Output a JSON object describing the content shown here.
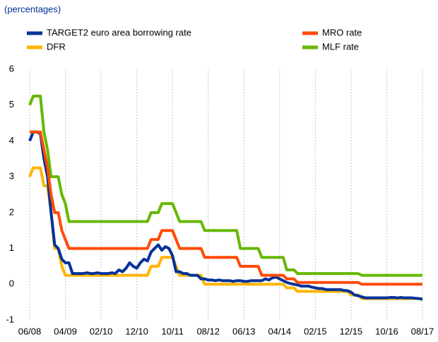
{
  "chart_data": {
    "type": "line",
    "subtitle": "(percentages)",
    "categories": [
      "06/08",
      null,
      null,
      null,
      null,
      null,
      null,
      null,
      null,
      null,
      "04/09",
      null,
      null,
      null,
      null,
      null,
      null,
      null,
      null,
      null,
      "02/10",
      null,
      null,
      null,
      null,
      null,
      null,
      null,
      null,
      null,
      "12/10",
      null,
      null,
      null,
      null,
      null,
      null,
      null,
      null,
      null,
      "10/11",
      null,
      null,
      null,
      null,
      null,
      null,
      null,
      null,
      null,
      "08/12",
      null,
      null,
      null,
      null,
      null,
      null,
      null,
      null,
      null,
      "06/13",
      null,
      null,
      null,
      null,
      null,
      null,
      null,
      null,
      null,
      "04/14",
      null,
      null,
      null,
      null,
      null,
      null,
      null,
      null,
      null,
      "02/15",
      null,
      null,
      null,
      null,
      null,
      null,
      null,
      null,
      null,
      "12/15",
      null,
      null,
      null,
      null,
      null,
      null,
      null,
      null,
      null,
      "10/16",
      null,
      null,
      null,
      null,
      null,
      null,
      null,
      null,
      null,
      "08/17"
    ],
    "series": [
      {
        "name": "TARGET2 euro area borrowing rate",
        "color": "#003299",
        "values": [
          4.0,
          4.25,
          4.25,
          4.2,
          3.5,
          3.0,
          2.0,
          1.1,
          1.0,
          0.7,
          0.6,
          0.6,
          0.3,
          0.3,
          0.3,
          0.3,
          0.32,
          0.3,
          0.3,
          0.32,
          0.3,
          0.3,
          0.3,
          0.32,
          0.3,
          0.4,
          0.35,
          0.45,
          0.6,
          0.5,
          0.45,
          0.6,
          0.7,
          0.65,
          0.9,
          1.0,
          1.1,
          0.95,
          1.05,
          1.0,
          0.8,
          0.35,
          0.35,
          0.3,
          0.3,
          0.25,
          0.25,
          0.25,
          0.15,
          0.15,
          0.12,
          0.12,
          0.1,
          0.12,
          0.1,
          0.1,
          0.1,
          0.08,
          0.1,
          0.1,
          0.08,
          0.08,
          0.1,
          0.1,
          0.1,
          0.1,
          0.15,
          0.12,
          0.18,
          0.2,
          0.15,
          0.1,
          0.05,
          0.02,
          0.0,
          -0.02,
          -0.05,
          -0.05,
          -0.05,
          -0.08,
          -0.1,
          -0.12,
          -0.12,
          -0.15,
          -0.15,
          -0.15,
          -0.15,
          -0.15,
          -0.17,
          -0.18,
          -0.22,
          -0.3,
          -0.32,
          -0.35,
          -0.38,
          -0.38,
          -0.38,
          -0.38,
          -0.38,
          -0.38,
          -0.38,
          -0.37,
          -0.37,
          -0.38,
          -0.37,
          -0.38,
          -0.38,
          -0.38,
          -0.39,
          -0.4,
          -0.42
        ]
      },
      {
        "name": "MRO rate",
        "color": "#ff4b00",
        "values": [
          4.25,
          4.25,
          4.25,
          4.25,
          3.75,
          3.25,
          2.5,
          2.0,
          2.0,
          1.5,
          1.25,
          1.0,
          1.0,
          1.0,
          1.0,
          1.0,
          1.0,
          1.0,
          1.0,
          1.0,
          1.0,
          1.0,
          1.0,
          1.0,
          1.0,
          1.0,
          1.0,
          1.0,
          1.0,
          1.0,
          1.0,
          1.0,
          1.0,
          1.0,
          1.25,
          1.25,
          1.25,
          1.5,
          1.5,
          1.5,
          1.5,
          1.25,
          1.0,
          1.0,
          1.0,
          1.0,
          1.0,
          1.0,
          1.0,
          0.75,
          0.75,
          0.75,
          0.75,
          0.75,
          0.75,
          0.75,
          0.75,
          0.75,
          0.75,
          0.5,
          0.5,
          0.5,
          0.5,
          0.5,
          0.5,
          0.25,
          0.25,
          0.25,
          0.25,
          0.25,
          0.25,
          0.25,
          0.15,
          0.15,
          0.15,
          0.05,
          0.05,
          0.05,
          0.05,
          0.05,
          0.05,
          0.05,
          0.05,
          0.05,
          0.05,
          0.05,
          0.05,
          0.05,
          0.05,
          0.05,
          0.05,
          0.05,
          0.05,
          0,
          0,
          0,
          0,
          0,
          0,
          0,
          0,
          0,
          0,
          0,
          0,
          0,
          0,
          0,
          0,
          0,
          0
        ]
      },
      {
        "name": "DFR",
        "color": "#ffb400",
        "values": [
          3.0,
          3.25,
          3.25,
          3.25,
          2.75,
          2.75,
          2.0,
          1.0,
          1.0,
          0.5,
          0.25,
          0.25,
          0.25,
          0.25,
          0.25,
          0.25,
          0.25,
          0.25,
          0.25,
          0.25,
          0.25,
          0.25,
          0.25,
          0.25,
          0.25,
          0.25,
          0.25,
          0.25,
          0.25,
          0.25,
          0.25,
          0.25,
          0.25,
          0.25,
          0.5,
          0.5,
          0.5,
          0.75,
          0.75,
          0.75,
          0.75,
          0.5,
          0.25,
          0.25,
          0.25,
          0.25,
          0.25,
          0.25,
          0.25,
          0,
          0,
          0,
          0,
          0,
          0,
          0,
          0,
          0,
          0,
          0,
          0,
          0,
          0,
          0,
          0,
          0,
          0,
          0,
          0,
          0,
          0,
          0,
          -0.1,
          -0.1,
          -0.1,
          -0.2,
          -0.2,
          -0.2,
          -0.2,
          -0.2,
          -0.2,
          -0.2,
          -0.2,
          -0.2,
          -0.2,
          -0.2,
          -0.2,
          -0.2,
          -0.2,
          -0.2,
          -0.3,
          -0.3,
          -0.3,
          -0.4,
          -0.4,
          -0.4,
          -0.4,
          -0.4,
          -0.4,
          -0.4,
          -0.4,
          -0.4,
          -0.4,
          -0.4,
          -0.4,
          -0.4,
          -0.4,
          -0.4,
          -0.4,
          -0.4,
          -0.4
        ]
      },
      {
        "name": "MLF rate",
        "color": "#65b800",
        "values": [
          5.0,
          5.25,
          5.25,
          5.25,
          4.25,
          3.75,
          3.0,
          3.0,
          3.0,
          2.5,
          2.25,
          1.75,
          1.75,
          1.75,
          1.75,
          1.75,
          1.75,
          1.75,
          1.75,
          1.75,
          1.75,
          1.75,
          1.75,
          1.75,
          1.75,
          1.75,
          1.75,
          1.75,
          1.75,
          1.75,
          1.75,
          1.75,
          1.75,
          1.75,
          2.0,
          2.0,
          2.0,
          2.25,
          2.25,
          2.25,
          2.25,
          2.0,
          1.75,
          1.75,
          1.75,
          1.75,
          1.75,
          1.75,
          1.75,
          1.5,
          1.5,
          1.5,
          1.5,
          1.5,
          1.5,
          1.5,
          1.5,
          1.5,
          1.5,
          1.0,
          1.0,
          1.0,
          1.0,
          1.0,
          1.0,
          0.75,
          0.75,
          0.75,
          0.75,
          0.75,
          0.75,
          0.75,
          0.4,
          0.4,
          0.4,
          0.3,
          0.3,
          0.3,
          0.3,
          0.3,
          0.3,
          0.3,
          0.3,
          0.3,
          0.3,
          0.3,
          0.3,
          0.3,
          0.3,
          0.3,
          0.3,
          0.3,
          0.3,
          0.25,
          0.25,
          0.25,
          0.25,
          0.25,
          0.25,
          0.25,
          0.25,
          0.25,
          0.25,
          0.25,
          0.25,
          0.25,
          0.25,
          0.25,
          0.25,
          0.25,
          0.25
        ]
      }
    ],
    "ylim": [
      -1,
      6
    ],
    "yticks": [
      -1,
      0,
      1,
      2,
      3,
      4,
      5,
      6
    ],
    "grid": "x"
  }
}
